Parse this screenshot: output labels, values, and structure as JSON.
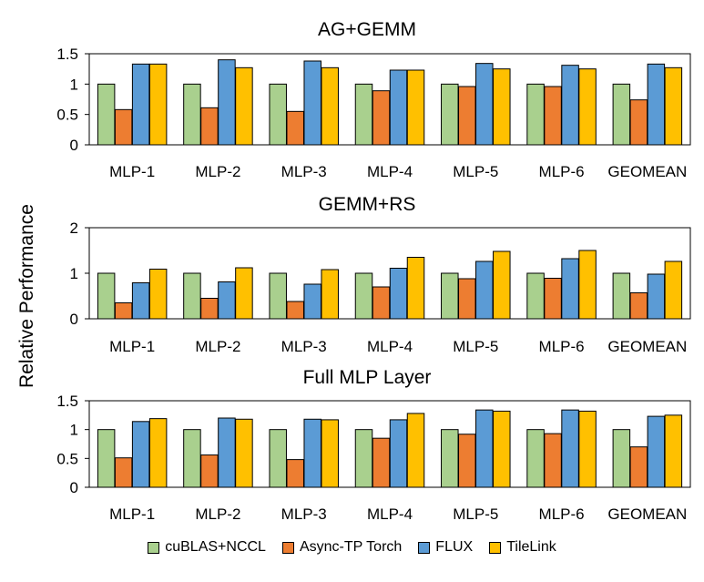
{
  "y_axis_label": "Relative Performance",
  "legend": [
    {
      "label": "cuBLAS+NCCL",
      "color": "#a9d08e"
    },
    {
      "label": "Async-TP Torch",
      "color": "#ed7d31"
    },
    {
      "label": "FLUX",
      "color": "#5b9bd5"
    },
    {
      "label": "TileLink",
      "color": "#ffc000"
    }
  ],
  "chart_data": [
    {
      "type": "bar",
      "title": "AG+GEMM",
      "xlabel": "",
      "ylabel": "Relative Performance",
      "ylim": [
        0,
        1.5
      ],
      "yticks": [
        "0",
        "0.5",
        "1",
        "1.5"
      ],
      "ytick_values": [
        0,
        0.5,
        1,
        1.5
      ],
      "categories": [
        "MLP-1",
        "MLP-2",
        "MLP-3",
        "MLP-4",
        "MLP-5",
        "MLP-6",
        "GEOMEAN"
      ],
      "series": [
        {
          "name": "cuBLAS+NCCL",
          "values": [
            1.0,
            1.0,
            1.0,
            1.0,
            1.0,
            1.0,
            1.0
          ]
        },
        {
          "name": "Async-TP Torch",
          "values": [
            0.58,
            0.61,
            0.55,
            0.89,
            0.96,
            0.96,
            0.74
          ]
        },
        {
          "name": "FLUX",
          "values": [
            1.33,
            1.4,
            1.38,
            1.23,
            1.34,
            1.31,
            1.33
          ]
        },
        {
          "name": "TileLink",
          "values": [
            1.33,
            1.27,
            1.27,
            1.23,
            1.25,
            1.25,
            1.27
          ]
        }
      ]
    },
    {
      "type": "bar",
      "title": "GEMM+RS",
      "xlabel": "",
      "ylabel": "Relative Performance",
      "ylim": [
        0,
        2
      ],
      "yticks": [
        "0",
        "1",
        "2"
      ],
      "ytick_values": [
        0,
        1,
        2
      ],
      "categories": [
        "MLP-1",
        "MLP-2",
        "MLP-3",
        "MLP-4",
        "MLP-5",
        "MLP-6",
        "GEOMEAN"
      ],
      "series": [
        {
          "name": "cuBLAS+NCCL",
          "values": [
            1.0,
            1.0,
            1.0,
            1.0,
            1.0,
            1.0,
            1.0
          ]
        },
        {
          "name": "Async-TP Torch",
          "values": [
            0.35,
            0.45,
            0.38,
            0.7,
            0.88,
            0.89,
            0.57
          ]
        },
        {
          "name": "FLUX",
          "values": [
            0.79,
            0.81,
            0.76,
            1.11,
            1.26,
            1.32,
            0.98
          ]
        },
        {
          "name": "TileLink",
          "values": [
            1.09,
            1.12,
            1.08,
            1.35,
            1.48,
            1.5,
            1.26
          ]
        }
      ]
    },
    {
      "type": "bar",
      "title": "Full MLP Layer",
      "xlabel": "",
      "ylabel": "Relative Performance",
      "ylim": [
        0,
        1.5
      ],
      "yticks": [
        "0",
        "0.5",
        "1",
        "1.5"
      ],
      "ytick_values": [
        0,
        0.5,
        1,
        1.5
      ],
      "categories": [
        "MLP-1",
        "MLP-2",
        "MLP-3",
        "MLP-4",
        "MLP-5",
        "MLP-6",
        "GEOMEAN"
      ],
      "series": [
        {
          "name": "cuBLAS+NCCL",
          "values": [
            1.0,
            1.0,
            1.0,
            1.0,
            1.0,
            1.0,
            1.0
          ]
        },
        {
          "name": "Async-TP Torch",
          "values": [
            0.51,
            0.56,
            0.48,
            0.85,
            0.92,
            0.93,
            0.7
          ]
        },
        {
          "name": "FLUX",
          "values": [
            1.14,
            1.2,
            1.18,
            1.17,
            1.34,
            1.34,
            1.23
          ]
        },
        {
          "name": "TileLink",
          "values": [
            1.19,
            1.18,
            1.17,
            1.28,
            1.32,
            1.32,
            1.25
          ]
        }
      ]
    }
  ]
}
